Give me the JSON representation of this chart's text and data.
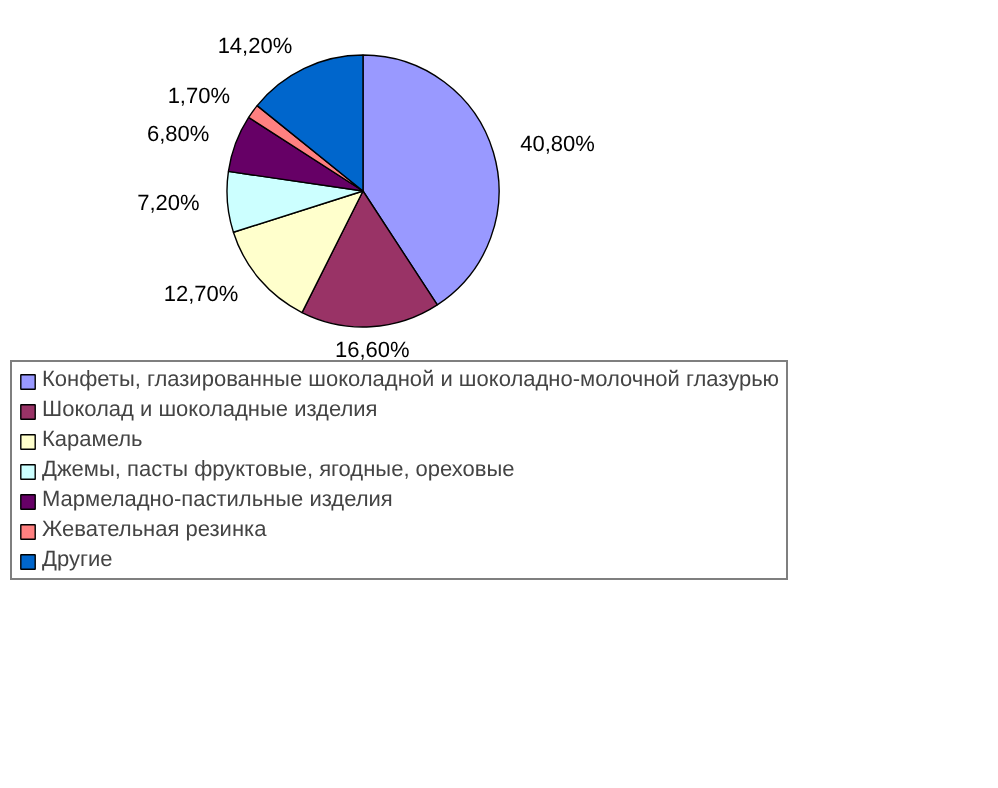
{
  "chart_data": {
    "type": "pie",
    "categories": [
      "Конфеты, глазированные шоколадной и шоколадно-молочной глазурью",
      "Шоколад и шоколадные изделия",
      "Карамель",
      "Джемы, пасты фруктовые, ягодные, ореховые",
      "Мармеладно-пастильные изделия",
      "Жевательная резинка",
      "Другие"
    ],
    "values": [
      40.8,
      16.6,
      12.7,
      7.2,
      6.8,
      1.7,
      14.2
    ],
    "value_labels": [
      "40,80%",
      "16,60%",
      "12,70%",
      "7,20%",
      "6,80%",
      "1,70%",
      "14,20%"
    ],
    "colors": [
      "#9999ff",
      "#993366",
      "#ffffcc",
      "#ccffff",
      "#660066",
      "#ff8080",
      "#0066cc"
    ],
    "legend": "bottom"
  }
}
